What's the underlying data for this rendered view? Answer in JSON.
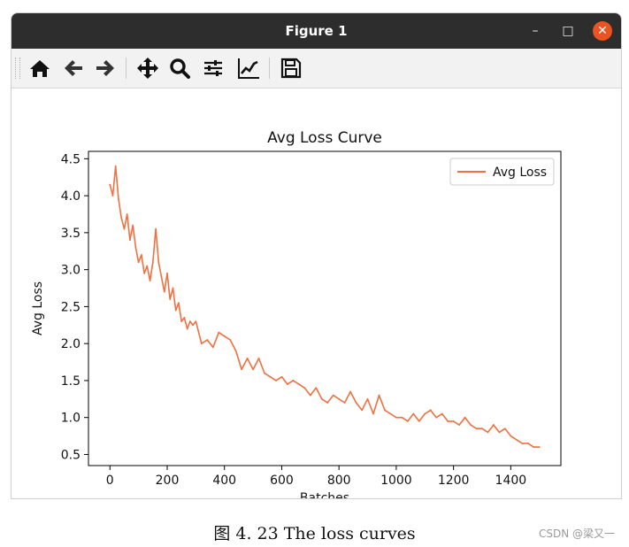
{
  "window": {
    "title": "Figure 1",
    "minimize_symbol": "–",
    "maximize_symbol": "□",
    "close_symbol": "✕",
    "accent_close": "#e95420"
  },
  "toolbar": {
    "buttons": [
      "home-icon",
      "back-arrow-icon",
      "forward-arrow-icon",
      "pan-move-icon",
      "zoom-magnifier-icon",
      "subplots-sliders-icon",
      "edit-axis-curve-icon",
      "save-floppy-icon"
    ]
  },
  "chart_data": {
    "type": "line",
    "title": "Avg Loss Curve",
    "xlabel": "Batches",
    "ylabel": "Avg Loss",
    "xlim": [
      -75,
      1575
    ],
    "ylim": [
      0.35,
      4.6
    ],
    "xticks": [
      0,
      200,
      400,
      600,
      800,
      1000,
      1200,
      1400
    ],
    "yticks": [
      0.5,
      1.0,
      1.5,
      2.0,
      2.5,
      3.0,
      3.5,
      4.0,
      4.5
    ],
    "ytick_labels": [
      "0.5",
      "1.0",
      "1.5",
      "2.0",
      "2.5",
      "3.0",
      "3.5",
      "4.0",
      "4.5"
    ],
    "grid": false,
    "legend": "top-right",
    "series": [
      {
        "name": "Avg Loss",
        "color": "#f07040",
        "x": [
          0,
          10,
          20,
          30,
          40,
          50,
          60,
          70,
          80,
          90,
          100,
          110,
          120,
          130,
          140,
          150,
          160,
          170,
          180,
          190,
          200,
          210,
          220,
          230,
          240,
          250,
          260,
          270,
          280,
          290,
          300,
          320,
          340,
          360,
          380,
          400,
          420,
          440,
          460,
          480,
          500,
          520,
          540,
          560,
          580,
          600,
          620,
          640,
          660,
          680,
          700,
          720,
          740,
          760,
          780,
          800,
          820,
          840,
          860,
          880,
          900,
          920,
          940,
          960,
          980,
          1000,
          1020,
          1040,
          1060,
          1080,
          1100,
          1120,
          1140,
          1160,
          1180,
          1200,
          1220,
          1240,
          1260,
          1280,
          1300,
          1320,
          1340,
          1360,
          1380,
          1400,
          1420,
          1440,
          1460,
          1480,
          1500
        ],
        "y": [
          4.15,
          4.0,
          4.4,
          3.95,
          3.7,
          3.55,
          3.75,
          3.4,
          3.6,
          3.3,
          3.1,
          3.2,
          2.95,
          3.05,
          2.85,
          3.1,
          3.55,
          3.1,
          2.9,
          2.7,
          2.95,
          2.6,
          2.75,
          2.45,
          2.55,
          2.3,
          2.35,
          2.2,
          2.3,
          2.25,
          2.3,
          2.0,
          2.05,
          1.95,
          2.15,
          2.1,
          2.05,
          1.9,
          1.65,
          1.8,
          1.65,
          1.8,
          1.6,
          1.55,
          1.5,
          1.55,
          1.45,
          1.5,
          1.45,
          1.4,
          1.3,
          1.4,
          1.25,
          1.2,
          1.3,
          1.25,
          1.2,
          1.35,
          1.2,
          1.1,
          1.25,
          1.05,
          1.3,
          1.1,
          1.05,
          1.0,
          1.0,
          0.95,
          1.05,
          0.95,
          1.05,
          1.1,
          1.0,
          1.05,
          0.95,
          0.95,
          0.9,
          1.0,
          0.9,
          0.85,
          0.85,
          0.8,
          0.9,
          0.8,
          0.85,
          0.75,
          0.7,
          0.65,
          0.65,
          0.6,
          0.6
        ]
      }
    ]
  },
  "caption": "图 4. 23  The loss curves",
  "watermark": "CSDN @梁又一"
}
